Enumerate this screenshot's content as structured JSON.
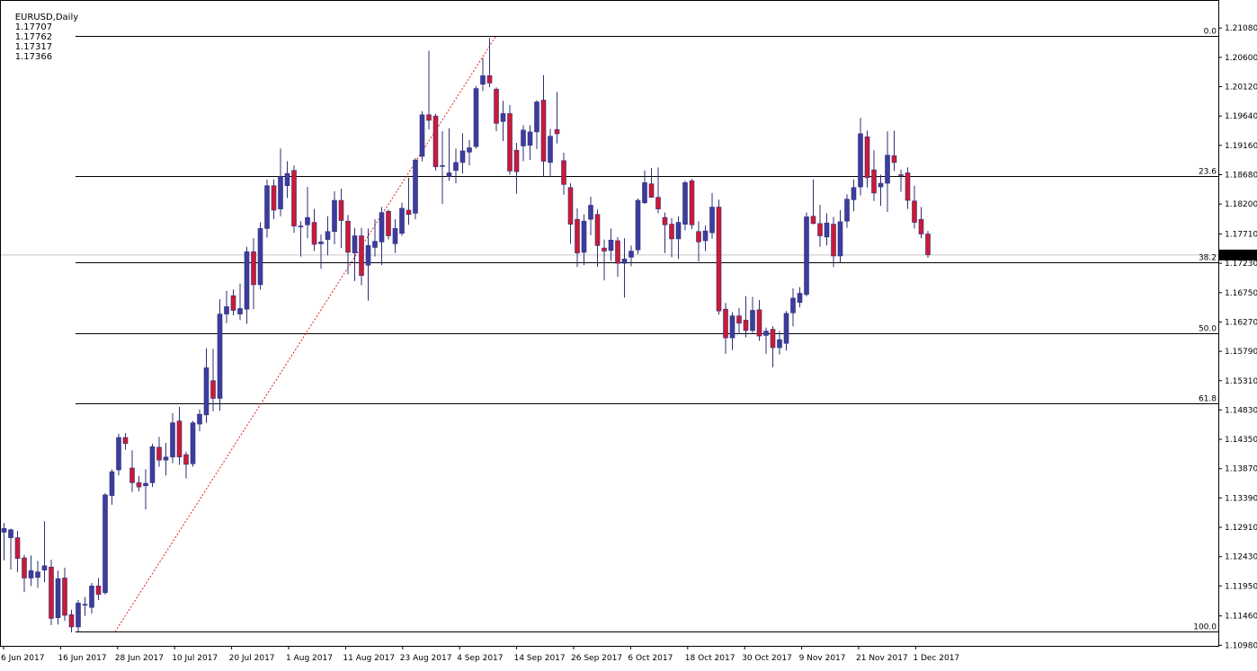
{
  "window": {
    "symbol": "EURUSD,Daily",
    "open": "1.17707",
    "high": "1.17762",
    "low": "1.17317",
    "close": "1.17366"
  },
  "colors": {
    "background": "#ffffff",
    "frame": "#000000",
    "bull_candle": "#3d3d9e",
    "bear_candle": "#cc1a35",
    "wick": "#2f2f7a",
    "fib_line": "#000000",
    "trend_line": "#e02020",
    "price_line": "#c8c8c8",
    "price_label_bg": "#000000",
    "price_label_text": "#ffffff"
  },
  "chart_data": {
    "type": "candlestick",
    "ylim": [
      1.10985,
      1.21083
    ],
    "price_ticks": [
      "1.21080",
      "1.20600",
      "1.20120",
      "1.19640",
      "1.19160",
      "1.18680",
      "1.18200",
      "1.17710",
      "1.17230",
      "1.16750",
      "1.16270",
      "1.15790",
      "1.15310",
      "1.14830",
      "1.14350",
      "1.13870",
      "1.13390",
      "1.12910",
      "1.12430",
      "1.11950",
      "1.11460",
      "1.10980"
    ],
    "date_labels": [
      "6 Jun 2017",
      "16 Jun 2017",
      "28 Jun 2017",
      "10 Jul 2017",
      "20 Jul 2017",
      "1 Aug 2017",
      "11 Aug 2017",
      "23 Aug 2017",
      "4 Sep 2017",
      "14 Sep 2017",
      "26 Sep 2017",
      "6 Oct 2017",
      "18 Oct 2017",
      "30 Oct 2017",
      "9 Nov 2017",
      "21 Nov 2017",
      "1 Dec 2017"
    ],
    "current_price": "1.17366",
    "fibonacci": {
      "levels": [
        {
          "label": "0.0",
          "price": 1.20945
        },
        {
          "label": "23.6",
          "price": 1.18655
        },
        {
          "label": "38.2",
          "price": 1.17245
        },
        {
          "label": "50.0",
          "price": 1.16085
        },
        {
          "label": "61.8",
          "price": 1.14935
        },
        {
          "label": "100.0",
          "price": 1.112
        }
      ],
      "trend_from": {
        "date": "19 Jun 2017",
        "price": 1.112
      },
      "trend_to": {
        "date": "8 Sep 2017",
        "price": 1.20945
      }
    },
    "candles": [
      {
        "o": 1.1283,
        "h": 1.1298,
        "l": 1.1237,
        "c": 1.1289
      },
      {
        "o": 1.1274,
        "h": 1.1289,
        "l": 1.1222,
        "c": 1.1287
      },
      {
        "o": 1.1274,
        "h": 1.1285,
        "l": 1.1218,
        "c": 1.124
      },
      {
        "o": 1.1241,
        "h": 1.1246,
        "l": 1.1185,
        "c": 1.1208
      },
      {
        "o": 1.1208,
        "h": 1.1245,
        "l": 1.1195,
        "c": 1.122
      },
      {
        "o": 1.1209,
        "h": 1.1236,
        "l": 1.1192,
        "c": 1.1218
      },
      {
        "o": 1.1221,
        "h": 1.1301,
        "l": 1.1201,
        "c": 1.1228
      },
      {
        "o": 1.1226,
        "h": 1.1238,
        "l": 1.1131,
        "c": 1.1142
      },
      {
        "o": 1.1143,
        "h": 1.122,
        "l": 1.1132,
        "c": 1.1207
      },
      {
        "o": 1.1208,
        "h": 1.1225,
        "l": 1.1138,
        "c": 1.1147
      },
      {
        "o": 1.1148,
        "h": 1.1156,
        "l": 1.1119,
        "c": 1.1128
      },
      {
        "o": 1.1128,
        "h": 1.1172,
        "l": 1.112,
        "c": 1.1167
      },
      {
        "o": 1.1164,
        "h": 1.1177,
        "l": 1.1146,
        "c": 1.1165
      },
      {
        "o": 1.116,
        "h": 1.12,
        "l": 1.115,
        "c": 1.1195
      },
      {
        "o": 1.1195,
        "h": 1.1208,
        "l": 1.1172,
        "c": 1.1181
      },
      {
        "o": 1.1184,
        "h": 1.1347,
        "l": 1.1181,
        "c": 1.1344
      },
      {
        "o": 1.1343,
        "h": 1.1386,
        "l": 1.1328,
        "c": 1.1382
      },
      {
        "o": 1.1385,
        "h": 1.1444,
        "l": 1.1376,
        "c": 1.1438
      },
      {
        "o": 1.1438,
        "h": 1.1445,
        "l": 1.1418,
        "c": 1.1428
      },
      {
        "o": 1.1388,
        "h": 1.1417,
        "l": 1.1349,
        "c": 1.1364
      },
      {
        "o": 1.1364,
        "h": 1.1375,
        "l": 1.135,
        "c": 1.1357
      },
      {
        "o": 1.1359,
        "h": 1.1386,
        "l": 1.132,
        "c": 1.1363
      },
      {
        "o": 1.1364,
        "h": 1.1428,
        "l": 1.1357,
        "c": 1.1423
      },
      {
        "o": 1.1422,
        "h": 1.1439,
        "l": 1.139,
        "c": 1.1401
      },
      {
        "o": 1.1401,
        "h": 1.1429,
        "l": 1.1376,
        "c": 1.1406
      },
      {
        "o": 1.1406,
        "h": 1.1478,
        "l": 1.1396,
        "c": 1.1462
      },
      {
        "o": 1.1465,
        "h": 1.1488,
        "l": 1.1393,
        "c": 1.1406
      },
      {
        "o": 1.141,
        "h": 1.1415,
        "l": 1.1371,
        "c": 1.1394
      },
      {
        "o": 1.1395,
        "h": 1.1465,
        "l": 1.139,
        "c": 1.1462
      },
      {
        "o": 1.146,
        "h": 1.1484,
        "l": 1.1448,
        "c": 1.1476
      },
      {
        "o": 1.1475,
        "h": 1.1584,
        "l": 1.1462,
        "c": 1.1552
      },
      {
        "o": 1.1531,
        "h": 1.1583,
        "l": 1.1481,
        "c": 1.1502
      },
      {
        "o": 1.1502,
        "h": 1.1664,
        "l": 1.1482,
        "c": 1.164
      },
      {
        "o": 1.164,
        "h": 1.1678,
        "l": 1.1625,
        "c": 1.1652
      },
      {
        "o": 1.167,
        "h": 1.168,
        "l": 1.1638,
        "c": 1.1646
      },
      {
        "o": 1.164,
        "h": 1.169,
        "l": 1.163,
        "c": 1.1649
      },
      {
        "o": 1.1648,
        "h": 1.175,
        "l": 1.1624,
        "c": 1.1742
      },
      {
        "o": 1.1742,
        "h": 1.1764,
        "l": 1.1648,
        "c": 1.1688
      },
      {
        "o": 1.1688,
        "h": 1.179,
        "l": 1.168,
        "c": 1.178
      },
      {
        "o": 1.178,
        "h": 1.186,
        "l": 1.1765,
        "c": 1.185
      },
      {
        "o": 1.185,
        "h": 1.186,
        "l": 1.1795,
        "c": 1.181
      },
      {
        "o": 1.1812,
        "h": 1.1911,
        "l": 1.18,
        "c": 1.1865
      },
      {
        "o": 1.185,
        "h": 1.189,
        "l": 1.183,
        "c": 1.187
      },
      {
        "o": 1.1875,
        "h": 1.1883,
        "l": 1.1773,
        "c": 1.1784
      },
      {
        "o": 1.1784,
        "h": 1.1792,
        "l": 1.1734,
        "c": 1.1784
      },
      {
        "o": 1.1786,
        "h": 1.1848,
        "l": 1.1764,
        "c": 1.1798
      },
      {
        "o": 1.179,
        "h": 1.1812,
        "l": 1.1743,
        "c": 1.1754
      },
      {
        "o": 1.1755,
        "h": 1.177,
        "l": 1.1714,
        "c": 1.1758
      },
      {
        "o": 1.1762,
        "h": 1.18,
        "l": 1.1736,
        "c": 1.1775
      },
      {
        "o": 1.1775,
        "h": 1.1841,
        "l": 1.1754,
        "c": 1.1826
      },
      {
        "o": 1.1826,
        "h": 1.1845,
        "l": 1.1748,
        "c": 1.1793
      },
      {
        "o": 1.1792,
        "h": 1.1802,
        "l": 1.1705,
        "c": 1.1741
      },
      {
        "o": 1.174,
        "h": 1.1781,
        "l": 1.1694,
        "c": 1.1768
      },
      {
        "o": 1.1768,
        "h": 1.1781,
        "l": 1.1687,
        "c": 1.1703
      },
      {
        "o": 1.172,
        "h": 1.178,
        "l": 1.1662,
        "c": 1.1752
      },
      {
        "o": 1.1749,
        "h": 1.1795,
        "l": 1.1734,
        "c": 1.1759
      },
      {
        "o": 1.1758,
        "h": 1.1815,
        "l": 1.172,
        "c": 1.1806
      },
      {
        "o": 1.1808,
        "h": 1.1811,
        "l": 1.1762,
        "c": 1.1768
      },
      {
        "o": 1.1755,
        "h": 1.1795,
        "l": 1.174,
        "c": 1.178
      },
      {
        "o": 1.1772,
        "h": 1.1822,
        "l": 1.1768,
        "c": 1.1813
      },
      {
        "o": 1.181,
        "h": 1.1863,
        "l": 1.1786,
        "c": 1.1803
      },
      {
        "o": 1.1805,
        "h": 1.1895,
        "l": 1.1795,
        "c": 1.1892
      },
      {
        "o": 1.1898,
        "h": 1.1972,
        "l": 1.189,
        "c": 1.1966
      },
      {
        "o": 1.1966,
        "h": 1.2071,
        "l": 1.1942,
        "c": 1.1957
      },
      {
        "o": 1.1964,
        "h": 1.1968,
        "l": 1.1875,
        "c": 1.1881
      },
      {
        "o": 1.1882,
        "h": 1.1939,
        "l": 1.182,
        "c": 1.1883
      },
      {
        "o": 1.1865,
        "h": 1.1944,
        "l": 1.1858,
        "c": 1.1871
      },
      {
        "o": 1.1875,
        "h": 1.1911,
        "l": 1.1854,
        "c": 1.1888
      },
      {
        "o": 1.1888,
        "h": 1.1936,
        "l": 1.187,
        "c": 1.1907
      },
      {
        "o": 1.1905,
        "h": 1.1925,
        "l": 1.1883,
        "c": 1.1912
      },
      {
        "o": 1.1914,
        "h": 1.2013,
        "l": 1.1911,
        "c": 1.2009
      },
      {
        "o": 1.2016,
        "h": 1.2059,
        "l": 1.2005,
        "c": 1.203
      },
      {
        "o": 1.203,
        "h": 1.2092,
        "l": 1.2011,
        "c": 1.2018
      },
      {
        "o": 1.2008,
        "h": 1.2011,
        "l": 1.1939,
        "c": 1.1952
      },
      {
        "o": 1.1955,
        "h": 1.1989,
        "l": 1.1923,
        "c": 1.1968
      },
      {
        "o": 1.1968,
        "h": 1.1982,
        "l": 1.1868,
        "c": 1.1874
      },
      {
        "o": 1.1908,
        "h": 1.192,
        "l": 1.1837,
        "c": 1.1873
      },
      {
        "o": 1.1915,
        "h": 1.1949,
        "l": 1.189,
        "c": 1.1941
      },
      {
        "o": 1.1916,
        "h": 1.1949,
        "l": 1.1892,
        "c": 1.1938
      },
      {
        "o": 1.1938,
        "h": 1.199,
        "l": 1.191,
        "c": 1.1987
      },
      {
        "o": 1.199,
        "h": 1.2031,
        "l": 1.1865,
        "c": 1.189
      },
      {
        "o": 1.1888,
        "h": 1.1943,
        "l": 1.1864,
        "c": 1.1931
      },
      {
        "o": 1.1942,
        "h": 1.2003,
        "l": 1.1919,
        "c": 1.1935
      },
      {
        "o": 1.1891,
        "h": 1.1904,
        "l": 1.1835,
        "c": 1.1852
      },
      {
        "o": 1.1847,
        "h": 1.1854,
        "l": 1.1755,
        "c": 1.1787
      },
      {
        "o": 1.1795,
        "h": 1.1813,
        "l": 1.1717,
        "c": 1.174
      },
      {
        "o": 1.1741,
        "h": 1.1803,
        "l": 1.172,
        "c": 1.1792
      },
      {
        "o": 1.1795,
        "h": 1.1832,
        "l": 1.1769,
        "c": 1.1818
      },
      {
        "o": 1.1803,
        "h": 1.1811,
        "l": 1.1717,
        "c": 1.1752
      },
      {
        "o": 1.1748,
        "h": 1.1762,
        "l": 1.1695,
        "c": 1.1743
      },
      {
        "o": 1.1744,
        "h": 1.178,
        "l": 1.1727,
        "c": 1.1761
      },
      {
        "o": 1.176,
        "h": 1.1766,
        "l": 1.1701,
        "c": 1.1723
      },
      {
        "o": 1.1723,
        "h": 1.1764,
        "l": 1.1667,
        "c": 1.173
      },
      {
        "o": 1.1733,
        "h": 1.1752,
        "l": 1.1718,
        "c": 1.1743
      },
      {
        "o": 1.1745,
        "h": 1.1829,
        "l": 1.1738,
        "c": 1.1826
      },
      {
        "o": 1.1822,
        "h": 1.1875,
        "l": 1.182,
        "c": 1.1855
      },
      {
        "o": 1.1853,
        "h": 1.1879,
        "l": 1.1832,
        "c": 1.1831
      },
      {
        "o": 1.1831,
        "h": 1.188,
        "l": 1.1805,
        "c": 1.1812
      },
      {
        "o": 1.1798,
        "h": 1.1806,
        "l": 1.174,
        "c": 1.1786
      },
      {
        "o": 1.1787,
        "h": 1.1797,
        "l": 1.1733,
        "c": 1.1763
      },
      {
        "o": 1.1763,
        "h": 1.18,
        "l": 1.173,
        "c": 1.179
      },
      {
        "o": 1.1787,
        "h": 1.1858,
        "l": 1.1777,
        "c": 1.1855
      },
      {
        "o": 1.1858,
        "h": 1.1861,
        "l": 1.1779,
        "c": 1.1786
      },
      {
        "o": 1.1775,
        "h": 1.1792,
        "l": 1.1726,
        "c": 1.1758
      },
      {
        "o": 1.176,
        "h": 1.1785,
        "l": 1.1743,
        "c": 1.1776
      },
      {
        "o": 1.1773,
        "h": 1.1838,
        "l": 1.1763,
        "c": 1.1815
      },
      {
        "o": 1.1815,
        "h": 1.1827,
        "l": 1.1639,
        "c": 1.1645
      },
      {
        "o": 1.1648,
        "h": 1.1658,
        "l": 1.1575,
        "c": 1.1601
      },
      {
        "o": 1.1601,
        "h": 1.1643,
        "l": 1.1581,
        "c": 1.1637
      },
      {
        "o": 1.1637,
        "h": 1.165,
        "l": 1.1607,
        "c": 1.1625
      },
      {
        "o": 1.163,
        "h": 1.1669,
        "l": 1.1602,
        "c": 1.1613
      },
      {
        "o": 1.1613,
        "h": 1.1668,
        "l": 1.1609,
        "c": 1.1646
      },
      {
        "o": 1.1647,
        "h": 1.1663,
        "l": 1.1596,
        "c": 1.1604
      },
      {
        "o": 1.1605,
        "h": 1.1618,
        "l": 1.1575,
        "c": 1.1612
      },
      {
        "o": 1.1615,
        "h": 1.162,
        "l": 1.1553,
        "c": 1.1585
      },
      {
        "o": 1.1585,
        "h": 1.1612,
        "l": 1.1574,
        "c": 1.1598
      },
      {
        "o": 1.1592,
        "h": 1.1645,
        "l": 1.158,
        "c": 1.1641
      },
      {
        "o": 1.1642,
        "h": 1.1682,
        "l": 1.162,
        "c": 1.1666
      },
      {
        "o": 1.1659,
        "h": 1.1684,
        "l": 1.1651,
        "c": 1.1674
      },
      {
        "o": 1.1672,
        "h": 1.1806,
        "l": 1.1669,
        "c": 1.1799
      },
      {
        "o": 1.18,
        "h": 1.186,
        "l": 1.1787,
        "c": 1.1788
      },
      {
        "o": 1.1788,
        "h": 1.1819,
        "l": 1.175,
        "c": 1.1768
      },
      {
        "o": 1.1766,
        "h": 1.1805,
        "l": 1.1752,
        "c": 1.1789
      },
      {
        "o": 1.1787,
        "h": 1.1799,
        "l": 1.1717,
        "c": 1.1735
      },
      {
        "o": 1.1735,
        "h": 1.181,
        "l": 1.1724,
        "c": 1.1791
      },
      {
        "o": 1.1792,
        "h": 1.1836,
        "l": 1.1781,
        "c": 1.1828
      },
      {
        "o": 1.1827,
        "h": 1.186,
        "l": 1.1808,
        "c": 1.1847
      },
      {
        "o": 1.1848,
        "h": 1.1961,
        "l": 1.1834,
        "c": 1.1935
      },
      {
        "o": 1.193,
        "h": 1.194,
        "l": 1.1847,
        "c": 1.1863
      },
      {
        "o": 1.1876,
        "h": 1.1908,
        "l": 1.1825,
        "c": 1.1838
      },
      {
        "o": 1.1848,
        "h": 1.1868,
        "l": 1.1817,
        "c": 1.1854
      },
      {
        "o": 1.1854,
        "h": 1.1939,
        "l": 1.1807,
        "c": 1.19
      },
      {
        "o": 1.1899,
        "h": 1.194,
        "l": 1.1874,
        "c": 1.1888
      },
      {
        "o": 1.1868,
        "h": 1.1876,
        "l": 1.184,
        "c": 1.1867
      },
      {
        "o": 1.1871,
        "h": 1.188,
        "l": 1.1812,
        "c": 1.1826
      },
      {
        "o": 1.1825,
        "h": 1.185,
        "l": 1.178,
        "c": 1.179
      },
      {
        "o": 1.1795,
        "h": 1.1815,
        "l": 1.1764,
        "c": 1.1771
      },
      {
        "o": 1.1771,
        "h": 1.1776,
        "l": 1.1732,
        "c": 1.1737
      }
    ]
  }
}
